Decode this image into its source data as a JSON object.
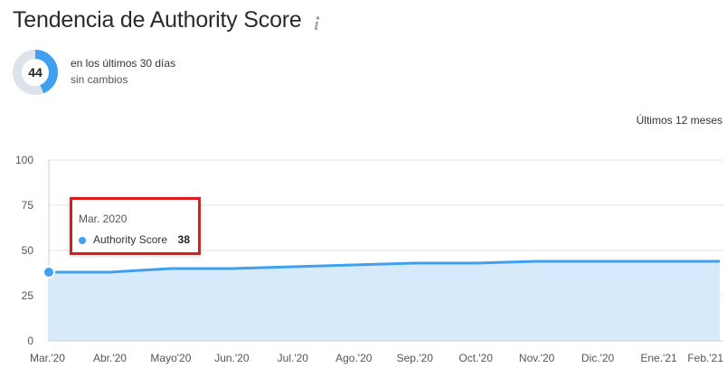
{
  "header": {
    "title": "Tendencia de Authority Score",
    "info_icon": "info-icon"
  },
  "score": {
    "value": "44",
    "fraction": 0.44,
    "period_text": "en los últimos 30 días",
    "change_text": "sin cambios",
    "colors": {
      "fill": "#3fa0f0",
      "track": "#dde3e8"
    }
  },
  "range_label": "Últimos 12 meses",
  "tooltip": {
    "date": "Mar. 2020",
    "series_label": "Authority Score",
    "value": "38"
  },
  "chart_data": {
    "type": "area",
    "categories": [
      "Mar.'20",
      "Abr.'20",
      "Mayo'20",
      "Jun.'20",
      "Jul.'20",
      "Ago.'20",
      "Sep.'20",
      "Oct.'20",
      "Nov.'20",
      "Dic.'20",
      "Ene.'21",
      "Feb.'21"
    ],
    "series": [
      {
        "name": "Authority Score",
        "values": [
          38,
          38,
          40,
          40,
          41,
          42,
          43,
          43,
          44,
          44,
          44,
          44
        ],
        "color": "#3fa0f0",
        "fill": "#d6eafb"
      }
    ],
    "yticks": [
      "0",
      "25",
      "50",
      "75",
      "100"
    ],
    "ylim": [
      0,
      100
    ],
    "grid": true,
    "xlabel": "",
    "ylabel": ""
  }
}
